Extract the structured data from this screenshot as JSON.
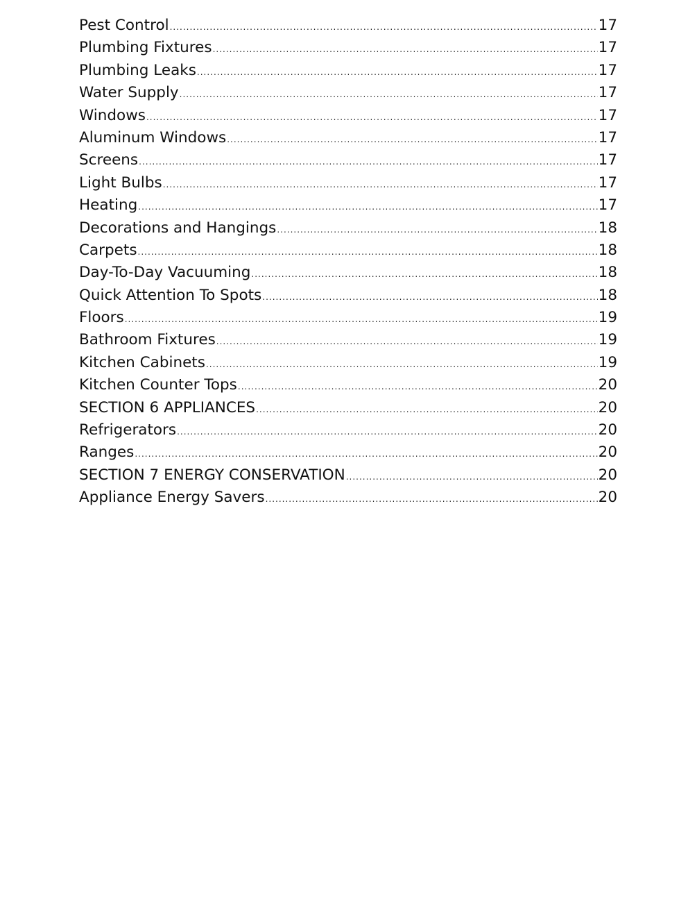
{
  "toc": [
    {
      "title": "Pest Control",
      "page": "17"
    },
    {
      "title": "Plumbing Fixtures",
      "page": "17"
    },
    {
      "title": "Plumbing Leaks",
      "page": "17"
    },
    {
      "title": "Water Supply",
      "page": "17"
    },
    {
      "title": "Windows",
      "page": "17"
    },
    {
      "title": "Aluminum Windows",
      "page": "17"
    },
    {
      "title": "Screens",
      "page": "17"
    },
    {
      "title": "Light Bulbs",
      "page": "17"
    },
    {
      "title": "Heating",
      "page": "17"
    },
    {
      "title": "Decorations and Hangings",
      "page": "18"
    },
    {
      "title": "Carpets",
      "page": "18"
    },
    {
      "title": "Day-To-Day Vacuuming",
      "page": "18"
    },
    {
      "title": "Quick Attention To Spots",
      "page": "18"
    },
    {
      "title": "Floors",
      "page": "19"
    },
    {
      "title": "Bathroom Fixtures",
      "page": "19"
    },
    {
      "title": "Kitchen Cabinets",
      "page": "19"
    },
    {
      "title": "Kitchen Counter Tops",
      "page": "20"
    },
    {
      "title": "SECTION 6 APPLIANCES",
      "page": "20"
    },
    {
      "title": "Refrigerators",
      "page": "20"
    },
    {
      "title": "Ranges",
      "page": "20"
    },
    {
      "title": "SECTION 7 ENERGY CONSERVATION",
      "page": "20"
    },
    {
      "title": "Appliance Energy Savers",
      "page": "20"
    }
  ]
}
